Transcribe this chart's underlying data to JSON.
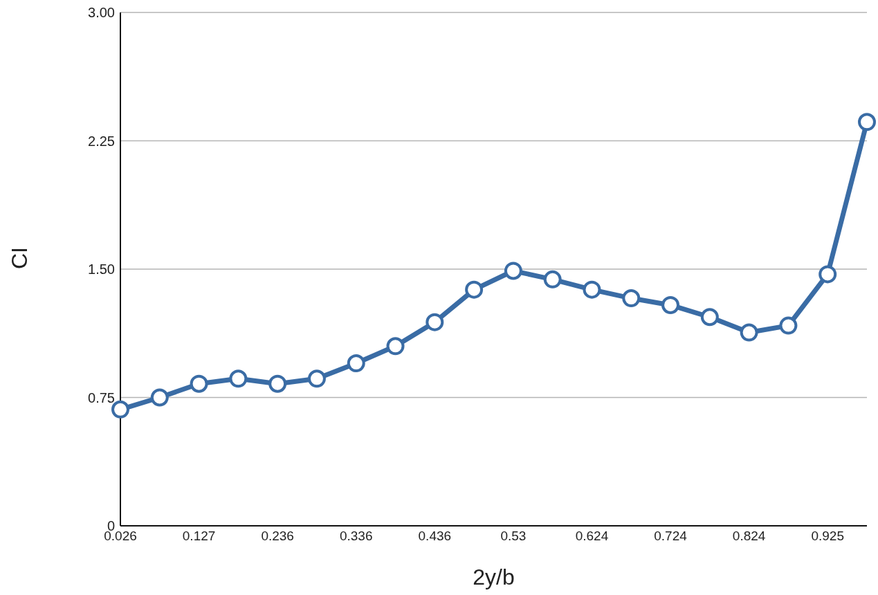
{
  "chart_data": {
    "type": "line",
    "xlabel": "2y/b",
    "ylabel": "CI",
    "categories": [
      "0.026",
      null,
      "0.127",
      null,
      "0.236",
      null,
      "0.336",
      null,
      "0.436",
      null,
      "0.53",
      null,
      "0.624",
      null,
      "0.724",
      null,
      "0.824",
      null,
      "0.925",
      null
    ],
    "series": [
      {
        "color": "#3a6ca5",
        "values": [
          0.68,
          0.75,
          0.83,
          0.86,
          0.83,
          0.86,
          0.95,
          1.05,
          1.19,
          1.38,
          1.49,
          1.44,
          1.38,
          1.33,
          1.29,
          1.22,
          1.13,
          1.17,
          1.47,
          2.36
        ]
      }
    ],
    "ylim": [
      0,
      3
    ],
    "yticks": [
      0,
      {
        "value": 0.75,
        "label": "0.75"
      },
      {
        "value": 1.5,
        "label": "1.50"
      },
      {
        "value": 2.25,
        "label": "2.25"
      },
      {
        "value": 3,
        "label": "3.00"
      }
    ],
    "grid": "y",
    "marker": "circle",
    "line_style": "solid"
  }
}
